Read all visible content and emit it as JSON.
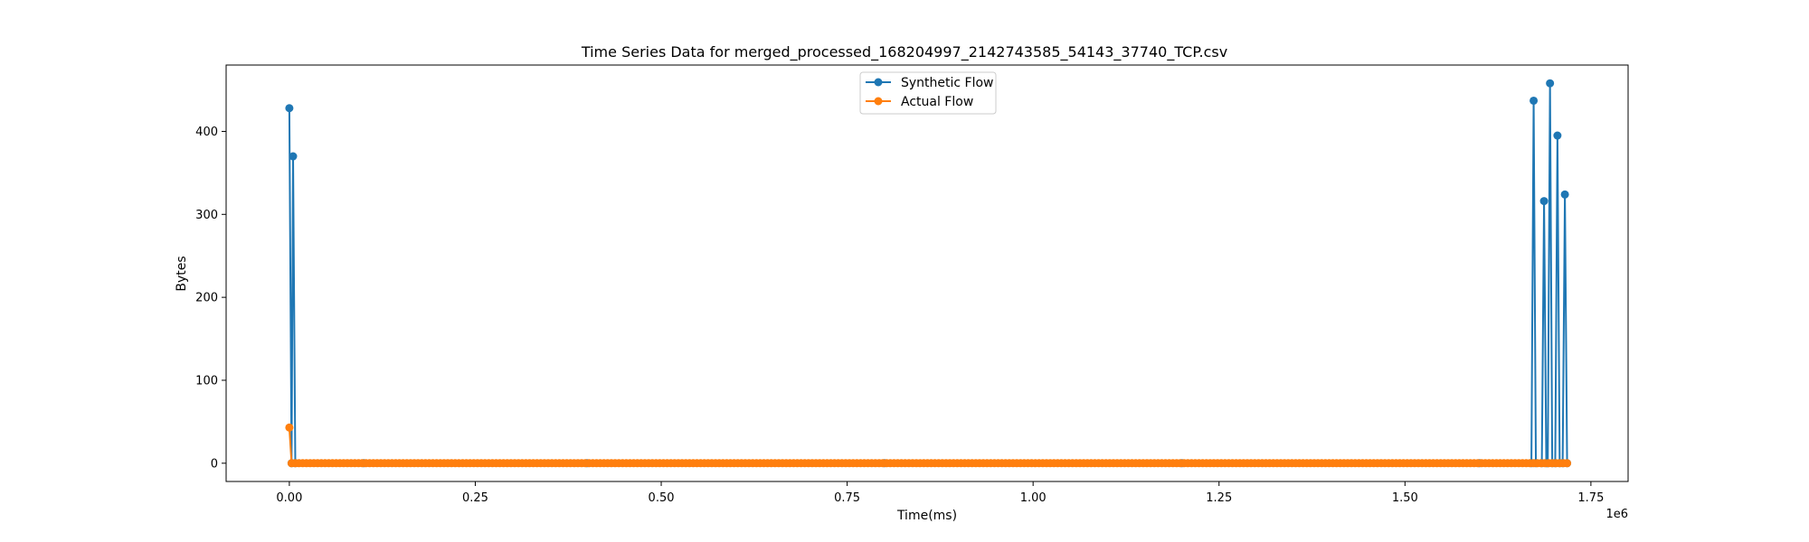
{
  "chart_data": {
    "type": "line",
    "title": "Time Series Data for merged_processed_168204997_2142743585_54143_37740_TCP.csv",
    "xlabel": "Time(ms)",
    "ylabel": "Bytes",
    "x_offset_label": "1e6",
    "xlim": [
      -85000,
      1800000
    ],
    "ylim": [
      -22,
      480
    ],
    "xticks": [
      0,
      250000,
      500000,
      750000,
      1000000,
      1250000,
      1500000,
      1750000
    ],
    "xtick_labels": [
      "0.00",
      "0.25",
      "0.50",
      "0.75",
      "1.00",
      "1.25",
      "1.50",
      "1.75"
    ],
    "yticks": [
      0,
      100,
      200,
      300,
      400
    ],
    "ytick_labels": [
      "0",
      "100",
      "200",
      "300",
      "400"
    ],
    "grid": false,
    "legend_position": "top-center",
    "series": [
      {
        "name": "Synthetic Flow",
        "color": "#1f77b4",
        "marker": "circle",
        "points": [
          [
            0,
            428
          ],
          [
            3000,
            0
          ],
          [
            5000,
            370
          ],
          [
            8000,
            0
          ],
          [
            100000,
            0
          ],
          [
            400000,
            0
          ],
          [
            800000,
            0
          ],
          [
            1200000,
            0
          ],
          [
            1600000,
            0
          ],
          [
            1670000,
            0
          ],
          [
            1673000,
            437
          ],
          [
            1676000,
            0
          ],
          [
            1684000,
            0
          ],
          [
            1687000,
            316
          ],
          [
            1690000,
            0
          ],
          [
            1692000,
            0
          ],
          [
            1695000,
            458
          ],
          [
            1698000,
            0
          ],
          [
            1702000,
            0
          ],
          [
            1705000,
            395
          ],
          [
            1708000,
            0
          ],
          [
            1712000,
            0
          ],
          [
            1715000,
            324
          ],
          [
            1718000,
            0
          ]
        ]
      },
      {
        "name": "Actual Flow",
        "color": "#ff7f0e",
        "marker": "circle",
        "points": [
          [
            0,
            43
          ],
          [
            3000,
            0
          ],
          [
            1718000,
            0
          ]
        ],
        "dense_zero_run": {
          "start": 3000,
          "end": 1718000,
          "step": 5000
        }
      }
    ]
  }
}
